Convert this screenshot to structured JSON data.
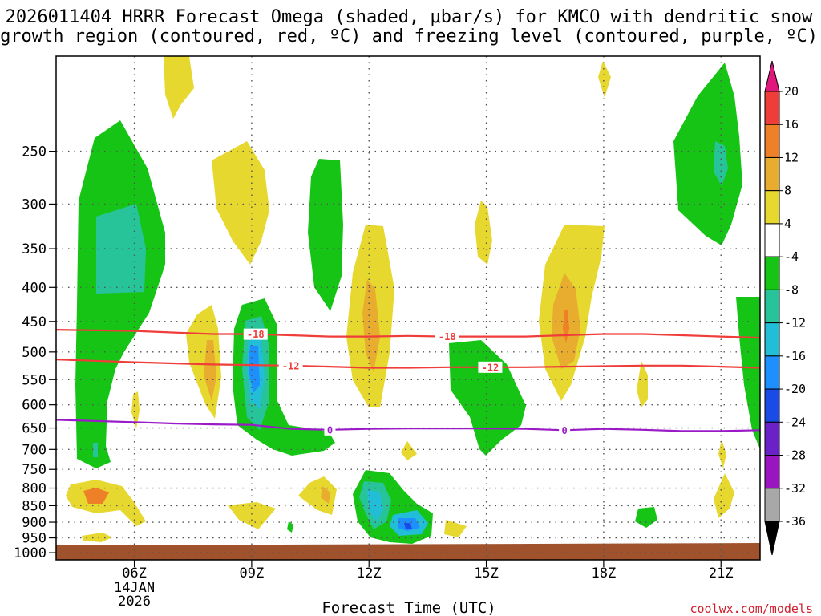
{
  "chart_data": {
    "type": "heatmap",
    "title_lines": [
      "2026011404 HRRR Forecast Omega (shaded, μbar/s) for KMCO with dendritic snow",
      "growth region (contoured, red, ºC) and freezing level (contoured, purple, ºC)"
    ],
    "xlabel": "Forecast Time (UTC)",
    "ylabel": "",
    "x_unit": "forecast hour from 04Z",
    "xlim": [
      0,
      18
    ],
    "ylim_hpa": [
      1025,
      180
    ],
    "x_ticks": [
      {
        "x": 2,
        "label": "06Z",
        "sub": [
          "14JAN",
          "2026"
        ]
      },
      {
        "x": 5,
        "label": "09Z",
        "sub": []
      },
      {
        "x": 8,
        "label": "12Z",
        "sub": []
      },
      {
        "x": 11,
        "label": "15Z",
        "sub": []
      },
      {
        "x": 14,
        "label": "18Z",
        "sub": []
      },
      {
        "x": 17,
        "label": "21Z",
        "sub": []
      }
    ],
    "y_ticks": [
      250,
      300,
      350,
      400,
      450,
      500,
      550,
      600,
      650,
      700,
      750,
      800,
      850,
      900,
      950,
      1000
    ],
    "colorbar": {
      "labels": [
        "20",
        "16",
        "12",
        "8",
        "4",
        "-4",
        "-8",
        "-12",
        "-16",
        "-20",
        "-24",
        "-28",
        "-32",
        "-36"
      ],
      "bins": [
        {
          "name": ">20",
          "color": "#e0187e"
        },
        {
          "name": "16-20",
          "color": "#ef3d3a"
        },
        {
          "name": "12-16",
          "color": "#ee8127"
        },
        {
          "name": "8-12",
          "color": "#e8ac2e"
        },
        {
          "name": "4-8",
          "color": "#e7d830"
        },
        {
          "name": "-4-4",
          "color": "#ffffff"
        },
        {
          "name": "-8--4",
          "color": "#16c416"
        },
        {
          "name": "-12--8",
          "color": "#27c49a"
        },
        {
          "name": "-16--12",
          "color": "#22bdd6"
        },
        {
          "name": "-20--16",
          "color": "#1d8fff"
        },
        {
          "name": "-24--20",
          "color": "#1b4be6"
        },
        {
          "name": "-28--24",
          "color": "#6a22c8"
        },
        {
          "name": "-32--28",
          "color": "#9a14c2"
        },
        {
          "name": "-36--32",
          "color": "#a8a8a8"
        },
        {
          "name": "<-36",
          "color": "#000000"
        }
      ]
    },
    "contours": [
      {
        "name": "minus18-isotherm",
        "color": "#ef3d3a",
        "label": "-18",
        "x": [
          0,
          2,
          4,
          5,
          6,
          7,
          8,
          9,
          10,
          11,
          12,
          13,
          14,
          15,
          16,
          17,
          18
        ],
        "p": [
          463,
          465,
          470,
          470,
          472,
          474,
          474,
          473,
          474,
          474,
          474,
          472,
          470,
          470,
          472,
          474,
          476
        ],
        "label_x": [
          5.1,
          10.0
        ]
      },
      {
        "name": "minus12-isotherm",
        "color": "#ef3d3a",
        "label": "-12",
        "x": [
          0,
          2,
          4,
          5,
          6,
          7,
          8,
          9,
          10,
          11,
          12,
          13,
          14,
          15,
          16,
          17,
          18
        ],
        "p": [
          513,
          518,
          522,
          523,
          524,
          526,
          528,
          528,
          527,
          527,
          527,
          526,
          525,
          524,
          524,
          526,
          528
        ],
        "label_x": [
          6.0,
          11.1
        ]
      },
      {
        "name": "freezing-level",
        "color": "#9a1ac8",
        "label": "0",
        "x": [
          0,
          2,
          3,
          4,
          5,
          6,
          7,
          8,
          9,
          10,
          11,
          12,
          13,
          14,
          15,
          16,
          17,
          18
        ],
        "p": [
          632,
          637,
          640,
          642,
          643,
          652,
          654,
          652,
          651,
          651,
          651,
          652,
          655,
          652,
          654,
          657,
          657,
          655
        ],
        "label_x": [
          7.0,
          13.0
        ]
      }
    ],
    "shaded_regions": [
      {
        "value_bin": "-8--4",
        "centroid": [
          1.2,
          520
        ],
        "label": "deep ascent column 05Z-06Z"
      },
      {
        "value_bin": "-12--8",
        "centroid": [
          1.1,
          390
        ],
        "label": "ascent core 05Z"
      },
      {
        "value_bin": "-8--4",
        "centroid": [
          5.3,
          560
        ],
        "label": "ascent column 09Z"
      },
      {
        "value_bin": "-20--16",
        "centroid": [
          5.0,
          580
        ],
        "label": "ascent core 09Z"
      },
      {
        "value_bin": "-8--4",
        "centroid": [
          6.6,
          380
        ],
        "label": "ascent 10Z upper"
      },
      {
        "value_bin": "4-8",
        "centroid": [
          5.2,
          330
        ],
        "label": "subsidence 09Z upper"
      },
      {
        "value_bin": "4-8",
        "centroid": [
          3.7,
          550
        ],
        "label": "subsidence 08Z mid"
      },
      {
        "value_bin": "4-8",
        "centroid": [
          8.0,
          490
        ],
        "label": "subsidence 12Z"
      },
      {
        "value_bin": "8-12",
        "centroid": [
          8.0,
          490
        ],
        "label": "subsidence core 12Z"
      },
      {
        "value_bin": "-8--4",
        "centroid": [
          10.8,
          620
        ],
        "label": "ascent 15Z mid"
      },
      {
        "value_bin": "4-8",
        "centroid": [
          13.0,
          490
        ],
        "label": "subsidence 17Z"
      },
      {
        "value_bin": "8-12",
        "centroid": [
          13.0,
          490
        ],
        "label": "subsidence core 17Z"
      },
      {
        "value_bin": "-8--4",
        "centroid": [
          16.6,
          280
        ],
        "label": "ascent 21Z upper"
      },
      {
        "value_bin": "-8--4",
        "centroid": [
          8.7,
          905
        ],
        "label": "low-level ascent 12Z-13Z"
      },
      {
        "value_bin": "-24--20",
        "centroid": [
          9.0,
          950
        ],
        "label": "low-level ascent core 13Z"
      },
      {
        "value_bin": "12-16",
        "centroid": [
          1.0,
          865
        ],
        "label": "low-level subsidence core 05Z"
      }
    ]
  },
  "credit": "coolwx.com/models",
  "colors": {
    "ground": "#a0522d",
    "axis": "#000000",
    "grid": "#555555"
  }
}
